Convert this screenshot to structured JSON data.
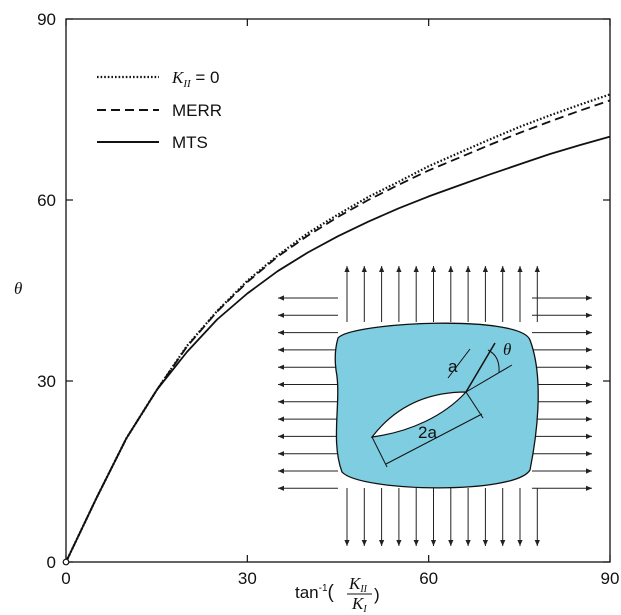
{
  "chart_data": {
    "type": "line",
    "title": "",
    "xlim": [
      0,
      90
    ],
    "ylim": [
      0,
      90
    ],
    "xticks": [
      0,
      30,
      60,
      90
    ],
    "yticks": [
      0,
      30,
      60,
      90
    ],
    "grid": false,
    "legend_position": "top-left",
    "xlabel": {
      "prefix": "tan",
      "sup": "-1",
      "open": "(",
      "num_main": "K",
      "num_sub": "II",
      "den_main": "K",
      "den_sub": "I",
      "close": ")"
    },
    "ylabel": "θ",
    "series": [
      {
        "name": "K_II = 0",
        "legend": {
          "main": "K",
          "sub": "II",
          "rest": " = 0"
        },
        "style": "dotted",
        "x": [
          0,
          5,
          10,
          15,
          20,
          25,
          30,
          35,
          40,
          45,
          50,
          55,
          60,
          65,
          70,
          75,
          80,
          85,
          90
        ],
        "y": [
          0,
          10.5,
          20.5,
          28.5,
          35.8,
          41.6,
          46.6,
          50.8,
          54.5,
          57.6,
          60.5,
          63.0,
          65.6,
          67.8,
          70.0,
          72.1,
          74.0,
          75.8,
          77.5
        ]
      },
      {
        "name": "MERR",
        "legend": {
          "main": "MERR",
          "sub": "",
          "rest": ""
        },
        "style": "dashed",
        "x": [
          0,
          5,
          10,
          15,
          20,
          25,
          30,
          35,
          40,
          45,
          50,
          55,
          60,
          65,
          70,
          75,
          80,
          85,
          90
        ],
        "y": [
          0,
          10.5,
          20.5,
          28.5,
          35.7,
          41.5,
          46.4,
          50.6,
          54.1,
          57.2,
          60.0,
          62.5,
          64.9,
          67.0,
          69.1,
          71.1,
          73.0,
          74.8,
          76.5
        ]
      },
      {
        "name": "MTS",
        "legend": {
          "main": "MTS",
          "sub": "",
          "rest": ""
        },
        "style": "solid",
        "x": [
          0,
          5,
          10,
          15,
          20,
          25,
          30,
          35,
          40,
          45,
          50,
          55,
          60,
          65,
          70,
          75,
          80,
          85,
          90
        ],
        "y": [
          0,
          10.5,
          20.5,
          28.5,
          34.8,
          40.2,
          44.5,
          48.2,
          51.3,
          54.0,
          56.4,
          58.6,
          60.6,
          62.4,
          64.2,
          65.9,
          67.6,
          69.1,
          70.5
        ]
      }
    ]
  },
  "inset": {
    "label_a": "a",
    "label_2a": "2a",
    "label_theta": "θ",
    "plate_color": "#7fcde0"
  }
}
